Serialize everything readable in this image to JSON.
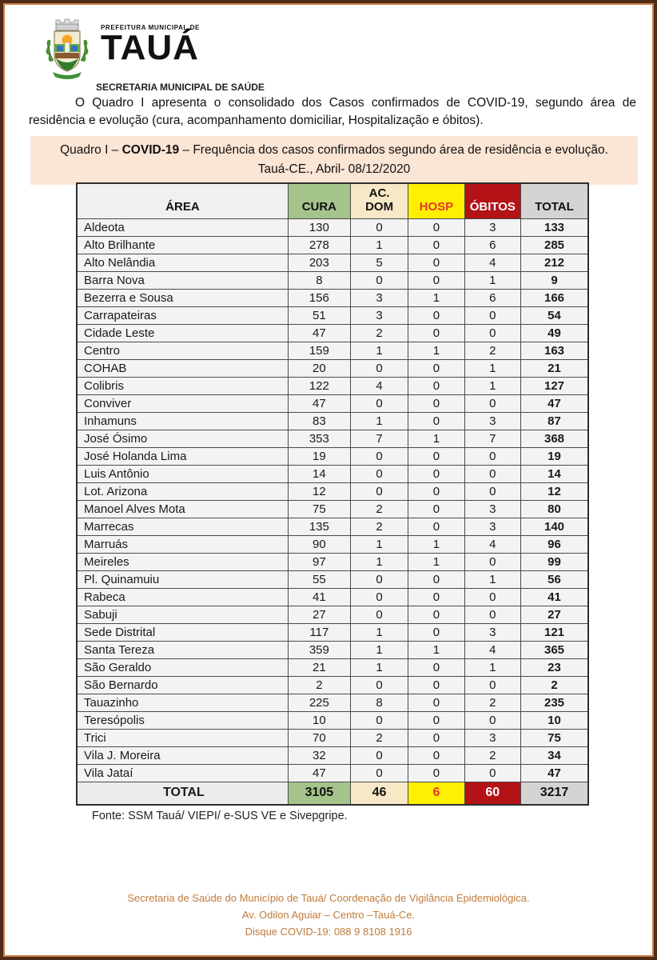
{
  "header": {
    "logo": "taua-coat-of-arms",
    "org_small": "PREFEITURA MUNICIPAL DE",
    "org_name": "TAUÁ",
    "department": "SECRETARIA MUNICIPAL DE SAÚDE"
  },
  "intro_paragraph": "O Quadro I apresenta o consolidado dos Casos confirmados de COVID-19, segundo área de residência e evolução (cura, acompanhamento domiciliar, Hospitalização e óbitos).",
  "title_box": {
    "line1_prefix": "Quadro I – ",
    "line1_bold": "COVID-19",
    "line1_suffix": " – Frequência dos casos confirmados segundo área de residência e evolução.",
    "line2": "Tauá-CE., Abril- 08/12/2020",
    "background": "#fbe5d5"
  },
  "table": {
    "columns": [
      {
        "key": "area",
        "label": "ÁREA",
        "bg": "#f0f0f0",
        "color": "#111111"
      },
      {
        "key": "cura",
        "label": "CURA",
        "bg": "#a5c48b",
        "color": "#111111"
      },
      {
        "key": "ac_dom",
        "label": "AC. DOM",
        "bg": "#f7e8c8",
        "color": "#111111"
      },
      {
        "key": "hosp",
        "label": "HOSP",
        "bg": "#ffef00",
        "color": "#e4392a"
      },
      {
        "key": "obitos",
        "label": "ÓBITOS",
        "bg": "#b31217",
        "color": "#ffffff"
      },
      {
        "key": "total",
        "label": "TOTAL",
        "bg": "#d4d4d4",
        "color": "#111111"
      }
    ],
    "rows": [
      {
        "area": "Aldeota",
        "cura": 130,
        "ac_dom": 0,
        "hosp": 0,
        "obitos": 3,
        "total": 133
      },
      {
        "area": "Alto Brilhante",
        "cura": 278,
        "ac_dom": 1,
        "hosp": 0,
        "obitos": 6,
        "total": 285
      },
      {
        "area": "Alto Nelândia",
        "cura": 203,
        "ac_dom": 5,
        "hosp": 0,
        "obitos": 4,
        "total": 212
      },
      {
        "area": "Barra Nova",
        "cura": 8,
        "ac_dom": 0,
        "hosp": 0,
        "obitos": 1,
        "total": 9
      },
      {
        "area": "Bezerra e Sousa",
        "cura": 156,
        "ac_dom": 3,
        "hosp": 1,
        "obitos": 6,
        "total": 166
      },
      {
        "area": "Carrapateiras",
        "cura": 51,
        "ac_dom": 3,
        "hosp": 0,
        "obitos": 0,
        "total": 54
      },
      {
        "area": "Cidade Leste",
        "cura": 47,
        "ac_dom": 2,
        "hosp": 0,
        "obitos": 0,
        "total": 49
      },
      {
        "area": "Centro",
        "cura": 159,
        "ac_dom": 1,
        "hosp": 1,
        "obitos": 2,
        "total": 163
      },
      {
        "area": "COHAB",
        "cura": 20,
        "ac_dom": 0,
        "hosp": 0,
        "obitos": 1,
        "total": 21
      },
      {
        "area": "Colibris",
        "cura": 122,
        "ac_dom": 4,
        "hosp": 0,
        "obitos": 1,
        "total": 127
      },
      {
        "area": "Conviver",
        "cura": 47,
        "ac_dom": 0,
        "hosp": 0,
        "obitos": 0,
        "total": 47
      },
      {
        "area": "Inhamuns",
        "cura": 83,
        "ac_dom": 1,
        "hosp": 0,
        "obitos": 3,
        "total": 87
      },
      {
        "area": "José Ósimo",
        "cura": 353,
        "ac_dom": 7,
        "hosp": 1,
        "obitos": 7,
        "total": 368
      },
      {
        "area": "José Holanda Lima",
        "cura": 19,
        "ac_dom": 0,
        "hosp": 0,
        "obitos": 0,
        "total": 19
      },
      {
        "area": "Luis Antônio",
        "cura": 14,
        "ac_dom": 0,
        "hosp": 0,
        "obitos": 0,
        "total": 14
      },
      {
        "area": "Lot. Arizona",
        "cura": 12,
        "ac_dom": 0,
        "hosp": 0,
        "obitos": 0,
        "total": 12
      },
      {
        "area": "Manoel Alves Mota",
        "cura": 75,
        "ac_dom": 2,
        "hosp": 0,
        "obitos": 3,
        "total": 80
      },
      {
        "area": "Marrecas",
        "cura": 135,
        "ac_dom": 2,
        "hosp": 0,
        "obitos": 3,
        "total": 140
      },
      {
        "area": "Marruás",
        "cura": 90,
        "ac_dom": 1,
        "hosp": 1,
        "obitos": 4,
        "total": 96
      },
      {
        "area": "Meireles",
        "cura": 97,
        "ac_dom": 1,
        "hosp": 1,
        "obitos": 0,
        "total": 99
      },
      {
        "area": "Pl. Quinamuiu",
        "cura": 55,
        "ac_dom": 0,
        "hosp": 0,
        "obitos": 1,
        "total": 56
      },
      {
        "area": "Rabeca",
        "cura": 41,
        "ac_dom": 0,
        "hosp": 0,
        "obitos": 0,
        "total": 41
      },
      {
        "area": "Sabuji",
        "cura": 27,
        "ac_dom": 0,
        "hosp": 0,
        "obitos": 0,
        "total": 27
      },
      {
        "area": "Sede Distrital",
        "cura": 117,
        "ac_dom": 1,
        "hosp": 0,
        "obitos": 3,
        "total": 121
      },
      {
        "area": "Santa Tereza",
        "cura": 359,
        "ac_dom": 1,
        "hosp": 1,
        "obitos": 4,
        "total": 365
      },
      {
        "area": "São Geraldo",
        "cura": 21,
        "ac_dom": 1,
        "hosp": 0,
        "obitos": 1,
        "total": 23
      },
      {
        "area": "São Bernardo",
        "cura": 2,
        "ac_dom": 0,
        "hosp": 0,
        "obitos": 0,
        "total": 2
      },
      {
        "area": "Tauazinho",
        "cura": 225,
        "ac_dom": 8,
        "hosp": 0,
        "obitos": 2,
        "total": 235
      },
      {
        "area": "Teresópolis",
        "cura": 10,
        "ac_dom": 0,
        "hosp": 0,
        "obitos": 0,
        "total": 10
      },
      {
        "area": "Trici",
        "cura": 70,
        "ac_dom": 2,
        "hosp": 0,
        "obitos": 3,
        "total": 75
      },
      {
        "area": "Vila J. Moreira",
        "cura": 32,
        "ac_dom": 0,
        "hosp": 0,
        "obitos": 2,
        "total": 34
      },
      {
        "area": "Vila Jataí",
        "cura": 47,
        "ac_dom": 0,
        "hosp": 0,
        "obitos": 0,
        "total": 47
      }
    ],
    "total_row": {
      "area": "TOTAL",
      "cura": 3105,
      "ac_dom": 46,
      "hosp": 6,
      "obitos": 60,
      "total": 3217
    },
    "source_note": "Fonte: SSM Tauá/ VIEPI/ e-SUS VE e Sivepgripe."
  },
  "footer": {
    "line1": "Secretaria de Saúde do Município de Tauá/ Coordenação de Vigilância Epidemiológica.",
    "line2": "Av. Odilon Aguiar – Centro –Tauá-Ce.",
    "line3": "Disque COVID-19: 088 9 8108 1916",
    "color": "#bf7b3a"
  }
}
